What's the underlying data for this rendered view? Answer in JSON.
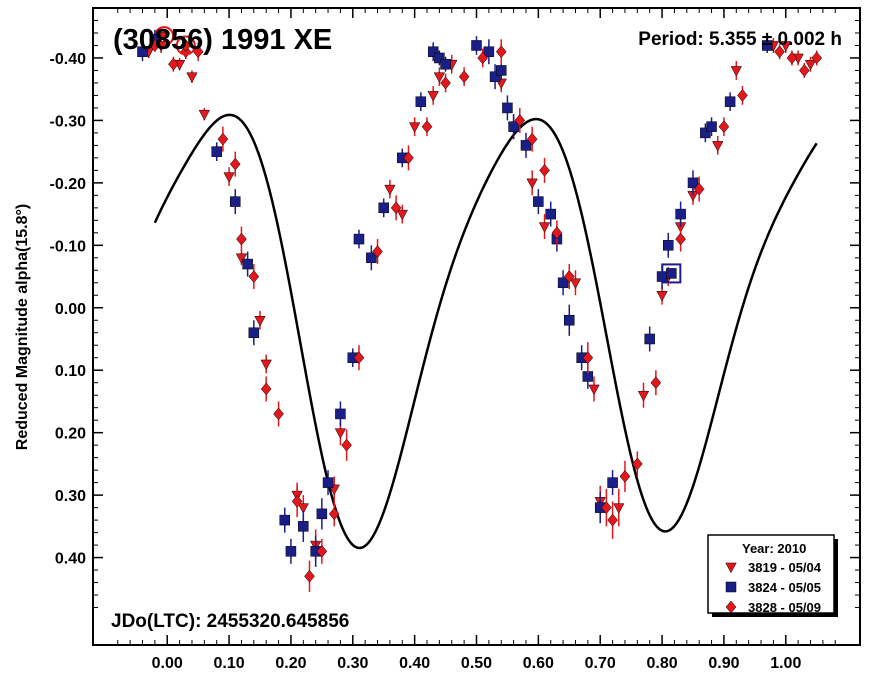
{
  "chart_data": {
    "type": "scatter",
    "title": "(30856) 1991 XE",
    "period_label": "Period: 5.355 ± 0.002 h",
    "jd_label": "JDo(LTC): 2455320.645856",
    "ylabel": "Reduced Magnitude alpha(15.8°)",
    "xlabel": "",
    "xlim": [
      -0.12,
      1.12
    ],
    "ylim": [
      -0.48,
      0.54
    ],
    "y_inverted": true,
    "grid": false,
    "legend_position": "bottom-right",
    "x_ticks": [
      {
        "value": 0.0,
        "label": "0.00"
      },
      {
        "value": 0.1,
        "label": "0.10"
      },
      {
        "value": 0.2,
        "label": "0.20"
      },
      {
        "value": 0.3,
        "label": "0.30"
      },
      {
        "value": 0.4,
        "label": "0.40"
      },
      {
        "value": 0.5,
        "label": "0.50"
      },
      {
        "value": 0.6,
        "label": "0.60"
      },
      {
        "value": 0.7,
        "label": "0.70"
      },
      {
        "value": 0.8,
        "label": "0.80"
      },
      {
        "value": 0.9,
        "label": "0.90"
      },
      {
        "value": 1.0,
        "label": "1.00"
      }
    ],
    "y_ticks": [
      {
        "value": -0.4,
        "label": "-0.40"
      },
      {
        "value": -0.3,
        "label": "-0.30"
      },
      {
        "value": -0.2,
        "label": "-0.20"
      },
      {
        "value": -0.1,
        "label": "-0.10"
      },
      {
        "value": 0.0,
        "label": "0.00"
      },
      {
        "value": 0.1,
        "label": "0.10"
      },
      {
        "value": 0.2,
        "label": "0.20"
      },
      {
        "value": 0.3,
        "label": "0.30"
      },
      {
        "value": 0.4,
        "label": "0.40"
      }
    ],
    "legend_title": "Year: 2010",
    "series": [
      {
        "name": "3819 - 05/04",
        "marker": "triangle-down",
        "color": "#e3171c",
        "x": [
          -0.03,
          -0.01,
          0.02,
          0.04,
          0.06,
          0.08,
          0.1,
          0.12,
          0.15,
          0.16,
          0.21,
          0.22,
          0.24,
          0.27,
          0.28,
          0.36,
          0.38,
          0.4,
          0.43,
          0.44,
          0.46,
          0.54,
          0.56,
          0.59,
          0.61,
          0.66,
          0.69,
          0.7,
          0.73,
          0.77,
          0.8,
          0.81,
          0.83,
          0.85,
          0.89,
          0.92,
          0.98,
          1.0,
          1.02,
          1.04
        ],
        "y": [
          -0.41,
          -0.42,
          -0.39,
          -0.37,
          -0.31,
          -0.25,
          -0.21,
          -0.08,
          0.02,
          0.09,
          0.3,
          0.32,
          0.38,
          0.29,
          0.2,
          -0.19,
          -0.15,
          -0.29,
          -0.34,
          -0.37,
          -0.39,
          -0.36,
          -0.29,
          -0.2,
          -0.13,
          -0.04,
          0.13,
          0.31,
          0.32,
          0.14,
          -0.02,
          -0.05,
          -0.13,
          -0.18,
          -0.26,
          -0.38,
          -0.42,
          -0.42,
          -0.4,
          -0.39
        ],
        "err": [
          0.01,
          0.012,
          0.01,
          0.01,
          0.01,
          0.01,
          0.015,
          0.012,
          0.015,
          0.015,
          0.02,
          0.02,
          0.025,
          0.02,
          0.02,
          0.015,
          0.015,
          0.015,
          0.015,
          0.015,
          0.015,
          0.015,
          0.02,
          0.02,
          0.02,
          0.02,
          0.02,
          0.025,
          0.03,
          0.02,
          0.015,
          0.015,
          0.015,
          0.015,
          0.015,
          0.015,
          0.012,
          0.012,
          0.012,
          0.012
        ],
        "highlight_x": -0.005,
        "highlight_y": -0.435
      },
      {
        "name": "3824 - 05/05",
        "marker": "square",
        "color": "#1a1f87",
        "x": [
          -0.04,
          -0.02,
          0.08,
          0.11,
          0.13,
          0.14,
          0.19,
          0.2,
          0.22,
          0.24,
          0.25,
          0.26,
          0.28,
          0.3,
          0.31,
          0.33,
          0.35,
          0.38,
          0.41,
          0.43,
          0.44,
          0.45,
          0.5,
          0.52,
          0.53,
          0.54,
          0.55,
          0.56,
          0.58,
          0.6,
          0.62,
          0.63,
          0.64,
          0.65,
          0.67,
          0.68,
          0.7,
          0.72,
          0.78,
          0.8,
          0.81,
          0.83,
          0.85,
          0.87,
          0.88,
          0.91,
          0.97
        ],
        "y": [
          -0.41,
          -0.43,
          -0.25,
          -0.17,
          -0.07,
          0.04,
          0.34,
          0.39,
          0.35,
          0.39,
          0.33,
          0.28,
          0.17,
          0.08,
          -0.11,
          -0.08,
          -0.16,
          -0.24,
          -0.33,
          -0.41,
          -0.4,
          -0.39,
          -0.42,
          -0.41,
          -0.37,
          -0.38,
          -0.32,
          -0.29,
          -0.26,
          -0.17,
          -0.15,
          -0.11,
          -0.04,
          0.02,
          0.08,
          0.11,
          0.32,
          0.28,
          0.05,
          -0.05,
          -0.1,
          -0.15,
          -0.2,
          -0.28,
          -0.29,
          -0.33,
          -0.42
        ],
        "err": [
          0.015,
          0.015,
          0.015,
          0.02,
          0.02,
          0.02,
          0.02,
          0.02,
          0.025,
          0.025,
          0.025,
          0.02,
          0.02,
          0.015,
          0.015,
          0.02,
          0.015,
          0.015,
          0.015,
          0.015,
          0.012,
          0.012,
          0.015,
          0.02,
          0.02,
          0.015,
          0.02,
          0.02,
          0.02,
          0.02,
          0.02,
          0.02,
          0.02,
          0.025,
          0.02,
          0.02,
          0.025,
          0.02,
          0.02,
          0.02,
          0.02,
          0.02,
          0.02,
          0.015,
          0.015,
          0.015,
          0.012
        ],
        "highlight_x": 0.815,
        "highlight_y": -0.055
      },
      {
        "name": "3828 - 05/09",
        "marker": "diamond",
        "color": "#e3171c",
        "x": [
          -0.02,
          0.01,
          0.03,
          0.05,
          0.09,
          0.11,
          0.12,
          0.14,
          0.16,
          0.18,
          0.21,
          0.23,
          0.25,
          0.27,
          0.29,
          0.31,
          0.34,
          0.37,
          0.39,
          0.42,
          0.45,
          0.48,
          0.51,
          0.54,
          0.57,
          0.59,
          0.61,
          0.63,
          0.65,
          0.68,
          0.71,
          0.72,
          0.74,
          0.76,
          0.79,
          0.83,
          0.86,
          0.9,
          0.93,
          0.99,
          1.01,
          1.03,
          1.05
        ],
        "y": [
          -0.42,
          -0.39,
          -0.41,
          -0.41,
          -0.27,
          -0.23,
          -0.11,
          -0.05,
          0.13,
          0.17,
          0.31,
          0.43,
          0.39,
          0.33,
          0.22,
          0.08,
          -0.09,
          -0.16,
          -0.24,
          -0.29,
          -0.36,
          -0.37,
          -0.4,
          -0.41,
          -0.3,
          -0.27,
          -0.22,
          -0.12,
          -0.05,
          0.08,
          0.32,
          0.34,
          0.27,
          0.25,
          0.12,
          -0.11,
          -0.19,
          -0.29,
          -0.34,
          -0.41,
          -0.4,
          -0.38,
          -0.4
        ],
        "err": [
          0.01,
          0.012,
          0.012,
          0.015,
          0.02,
          0.02,
          0.02,
          0.02,
          0.02,
          0.02,
          0.025,
          0.025,
          0.02,
          0.02,
          0.025,
          0.02,
          0.02,
          0.02,
          0.02,
          0.015,
          0.015,
          0.015,
          0.015,
          0.02,
          0.02,
          0.02,
          0.02,
          0.02,
          0.02,
          0.025,
          0.03,
          0.03,
          0.025,
          0.02,
          0.02,
          0.02,
          0.02,
          0.015,
          0.015,
          0.012,
          0.012,
          0.012,
          0.012
        ],
        "highlight_x": 0.03,
        "highlight_y": -0.42
      }
    ],
    "fit_curve": {
      "a0": 0.0,
      "terms": [
        {
          "k": 1,
          "a": -0.012,
          "b": 0.005
        },
        {
          "k": 2,
          "a": -0.205,
          "b": -0.255
        },
        {
          "k": 3,
          "a": 0.008,
          "b": 0.006
        },
        {
          "k": 4,
          "a": 0.032,
          "b": 0.045
        }
      ],
      "x_start": -0.02,
      "x_end": 1.05,
      "color": "#000000"
    }
  }
}
